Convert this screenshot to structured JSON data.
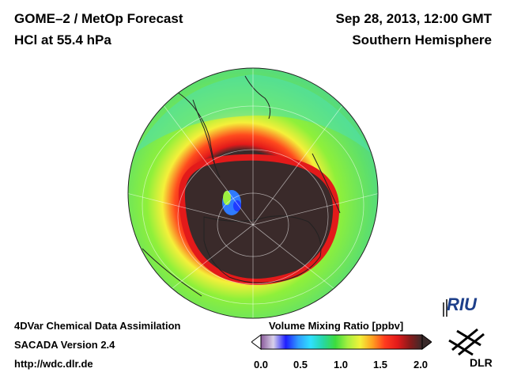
{
  "header": {
    "title_line1": "GOME–2 / MetOp Forecast",
    "title_line2": "HCl at 55.4 hPa",
    "date": "Sep 28, 2013, 12:00 GMT",
    "hemisphere": "Southern Hemisphere"
  },
  "footer": {
    "line1": "4DVar Chemical Data Assimilation",
    "line2": "SACADA Version 2.4",
    "line3": "http://wdc.dlr.de"
  },
  "colorbar": {
    "title": "Volume Mixing Ratio [ppbv]",
    "ticks": [
      "0.0",
      "0.5",
      "1.0",
      "1.5",
      "2.0"
    ],
    "tick_values": [
      0.0,
      0.5,
      1.0,
      1.5,
      2.0
    ],
    "range": [
      0.0,
      2.0
    ],
    "colors": [
      "#8a5a9a",
      "#d8d0ea",
      "#1e1eff",
      "#2f9bff",
      "#2fe0ff",
      "#27d7a4",
      "#3ddc3d",
      "#a6f040",
      "#f2f23a",
      "#ffa020",
      "#ff3a1e",
      "#e31a1a",
      "#8a1a1a",
      "#3a2a2a"
    ]
  },
  "logos": {
    "riu": "RIU",
    "dlr": "DLR"
  }
}
